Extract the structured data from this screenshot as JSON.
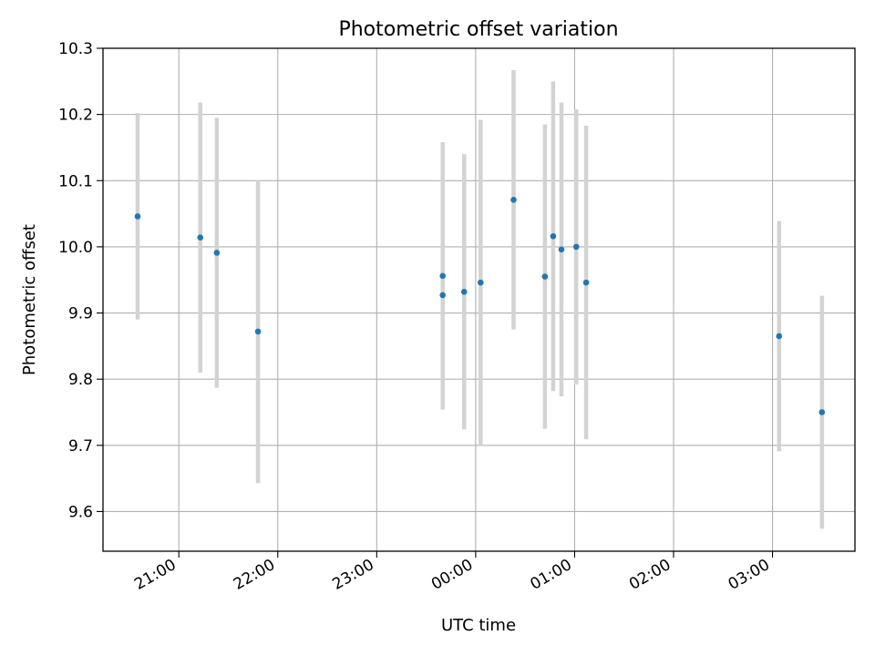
{
  "chart_data": {
    "type": "scatter",
    "title": "Photometric offset variation",
    "xlabel": "UTC time",
    "ylabel": "Photometric offset",
    "xlim": [
      "20:14",
      "03:50"
    ],
    "ylim": [
      9.54,
      10.3
    ],
    "xticks": [
      "21:00",
      "22:00",
      "23:00",
      "00:00",
      "01:00",
      "02:00",
      "03:00"
    ],
    "yticks": [
      "9.6",
      "9.7",
      "9.8",
      "9.9",
      "10.0",
      "10.1",
      "10.2",
      "10.3"
    ],
    "grid": true,
    "colors": {
      "points": "#1f77b4",
      "errorbars": "#d3d3d3",
      "grid": "#b0b0b0"
    },
    "points": [
      {
        "x": "20:35",
        "y": 10.046,
        "err": 0.156
      },
      {
        "x": "21:13",
        "y": 10.014,
        "err": 0.204
      },
      {
        "x": "21:23",
        "y": 9.991,
        "err": 0.204
      },
      {
        "x": "21:48",
        "y": 9.872,
        "err": 0.229
      },
      {
        "x": "23:40",
        "y": 9.956,
        "err": 0.202
      },
      {
        "x": "23:40",
        "y": 9.927,
        "err": 0.0
      },
      {
        "x": "23:53",
        "y": 9.932,
        "err": 0.208
      },
      {
        "x": "00:03",
        "y": 9.946,
        "err": 0.246
      },
      {
        "x": "00:23",
        "y": 10.071,
        "err": 0.196
      },
      {
        "x": "00:42",
        "y": 9.955,
        "err": 0.23
      },
      {
        "x": "00:47",
        "y": 10.016,
        "err": 0.234
      },
      {
        "x": "00:52",
        "y": 9.996,
        "err": 0.222
      },
      {
        "x": "01:01",
        "y": 10.0,
        "err": 0.208
      },
      {
        "x": "01:07",
        "y": 9.946,
        "err": 0.237
      },
      {
        "x": "03:04",
        "y": 9.865,
        "err": 0.174
      },
      {
        "x": "03:30",
        "y": 9.75,
        "err": 0.176
      }
    ]
  }
}
